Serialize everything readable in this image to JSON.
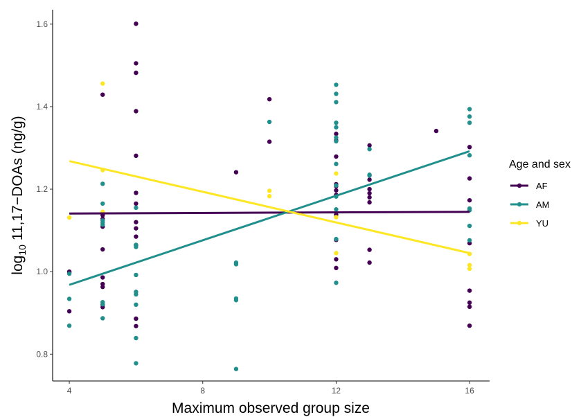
{
  "chart_data": {
    "type": "scatter",
    "xlabel": "Maximum observed group size",
    "ylabel_main": "log",
    "ylabel_sub": "10",
    "ylabel_rest": " 11,17−DOAs (ng/g)",
    "xlim": [
      3.5,
      16.6
    ],
    "ylim": [
      0.735,
      1.635
    ],
    "x_ticks": [
      4,
      8,
      12,
      16
    ],
    "x_tick_labels": [
      "4",
      "8",
      "12",
      "16"
    ],
    "y_ticks": [
      0.8,
      1.0,
      1.2,
      1.4,
      1.6
    ],
    "y_tick_labels": [
      "0.8",
      "1.0",
      "1.2",
      "1.4",
      "1.6"
    ],
    "grid": false,
    "legend": {
      "title": "Age and sex",
      "placement": "right"
    },
    "series": [
      {
        "name": "AF",
        "color": "#440154",
        "points": [
          [
            4,
            1.0
          ],
          [
            4,
            0.998
          ],
          [
            4,
            0.904
          ],
          [
            5,
            1.429
          ],
          [
            5,
            1.137
          ],
          [
            5,
            1.128
          ],
          [
            5,
            1.109
          ],
          [
            5,
            1.054
          ],
          [
            5,
            0.986
          ],
          [
            5,
            0.97
          ],
          [
            5,
            0.963
          ],
          [
            5,
            0.92
          ],
          [
            5,
            0.914
          ],
          [
            6,
            1.601
          ],
          [
            6,
            1.505
          ],
          [
            6,
            1.482
          ],
          [
            6,
            1.389
          ],
          [
            6,
            1.281
          ],
          [
            6,
            1.191
          ],
          [
            6,
            1.165
          ],
          [
            6,
            1.12
          ],
          [
            6,
            1.105
          ],
          [
            6,
            1.085
          ],
          [
            6,
            1.064
          ],
          [
            6,
            0.886
          ],
          [
            6,
            0.868
          ],
          [
            9,
            1.241
          ],
          [
            10,
            1.418
          ],
          [
            10,
            1.315
          ],
          [
            12,
            1.334
          ],
          [
            12,
            1.318
          ],
          [
            12,
            1.279
          ],
          [
            12,
            1.212
          ],
          [
            12,
            1.207
          ],
          [
            12,
            1.197
          ],
          [
            12,
            1.186
          ],
          [
            12,
            1.138
          ],
          [
            12,
            1.077
          ],
          [
            12,
            1.03
          ],
          [
            12,
            1.009
          ],
          [
            13,
            1.306
          ],
          [
            13,
            1.223
          ],
          [
            13,
            1.2
          ],
          [
            13,
            1.19
          ],
          [
            13,
            1.18
          ],
          [
            13,
            1.168
          ],
          [
            13,
            1.053
          ],
          [
            13,
            1.022
          ],
          [
            15,
            1.341
          ],
          [
            16,
            1.302
          ],
          [
            16,
            1.226
          ],
          [
            16,
            1.173
          ],
          [
            16,
            1.069
          ],
          [
            16,
            0.954
          ],
          [
            16,
            0.925
          ],
          [
            16,
            0.915
          ],
          [
            16,
            0.869
          ]
        ],
        "trend": [
          [
            4,
            1.141
          ],
          [
            16,
            1.145
          ]
        ]
      },
      {
        "name": "AM",
        "color": "#21908c",
        "points": [
          [
            4,
            0.995
          ],
          [
            4,
            0.934
          ],
          [
            4,
            0.869
          ],
          [
            5,
            1.213
          ],
          [
            5,
            1.165
          ],
          [
            5,
            1.124
          ],
          [
            5,
            1.119
          ],
          [
            5,
            1.114
          ],
          [
            5,
            0.926
          ],
          [
            5,
            0.921
          ],
          [
            5,
            0.887
          ],
          [
            6,
            1.155
          ],
          [
            6,
            1.065
          ],
          [
            6,
            1.06
          ],
          [
            6,
            0.992
          ],
          [
            6,
            0.951
          ],
          [
            6,
            0.945
          ],
          [
            6,
            0.92
          ],
          [
            6,
            0.839
          ],
          [
            6,
            0.778
          ],
          [
            9,
            1.022
          ],
          [
            9,
            1.018
          ],
          [
            9,
            0.935
          ],
          [
            9,
            0.931
          ],
          [
            9,
            0.764
          ],
          [
            10,
            1.363
          ],
          [
            12,
            1.453
          ],
          [
            12,
            1.431
          ],
          [
            12,
            1.411
          ],
          [
            12,
            1.361
          ],
          [
            12,
            1.35
          ],
          [
            12,
            1.325
          ],
          [
            12,
            1.316
          ],
          [
            12,
            1.261
          ],
          [
            12,
            1.209
          ],
          [
            12,
            1.182
          ],
          [
            12,
            1.151
          ],
          [
            12,
            1.079
          ],
          [
            12,
            0.973
          ],
          [
            13,
            1.297
          ],
          [
            13,
            1.235
          ],
          [
            13,
            1.233
          ],
          [
            16,
            1.394
          ],
          [
            16,
            1.376
          ],
          [
            16,
            1.361
          ],
          [
            16,
            1.282
          ],
          [
            16,
            1.153
          ],
          [
            16,
            1.149
          ],
          [
            16,
            1.111
          ],
          [
            16,
            1.076
          ]
        ],
        "trend": [
          [
            4,
            0.968
          ],
          [
            16,
            1.292
          ]
        ]
      },
      {
        "name": "YU",
        "color": "#fde725",
        "points": [
          [
            4,
            1.131
          ],
          [
            5,
            1.456
          ],
          [
            5,
            1.246
          ],
          [
            5,
            1.145
          ],
          [
            10,
            1.196
          ],
          [
            10,
            1.183
          ],
          [
            12,
            1.238
          ],
          [
            12,
            1.132
          ],
          [
            12,
            1.045
          ],
          [
            16,
            1.043
          ],
          [
            16,
            1.016
          ],
          [
            16,
            1.007
          ]
        ],
        "trend": [
          [
            4,
            1.268
          ],
          [
            16,
            1.045
          ]
        ]
      }
    ]
  }
}
